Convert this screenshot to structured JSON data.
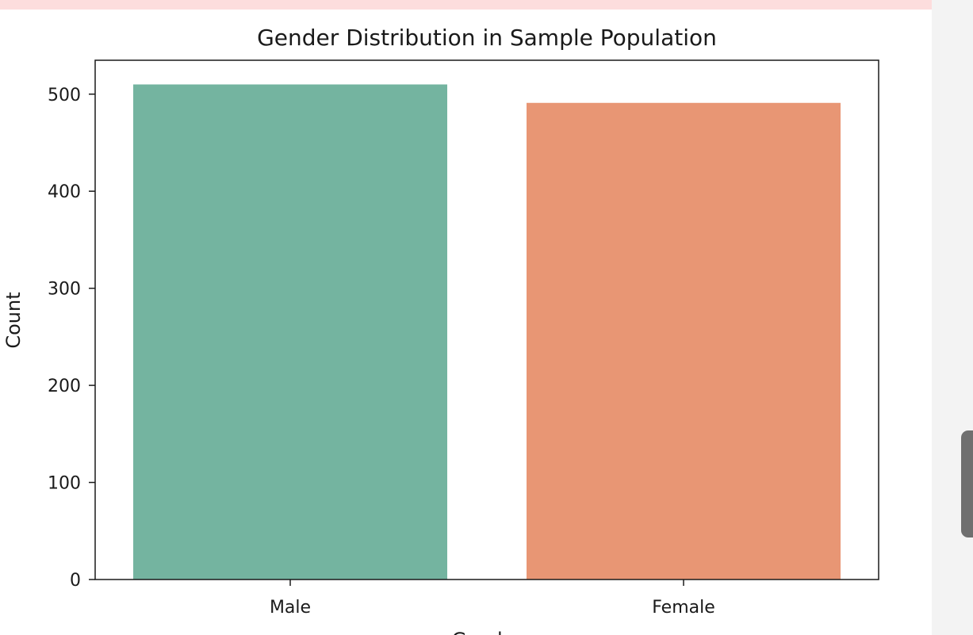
{
  "chart_data": {
    "type": "bar",
    "title": "Gender Distribution in Sample Population",
    "xlabel": "Gender",
    "ylabel": "Count",
    "categories": [
      "Male",
      "Female"
    ],
    "values": [
      510,
      491
    ],
    "colors": [
      "#74b4a0",
      "#e89674"
    ],
    "ylim": [
      0,
      535
    ],
    "yticks": [
      0,
      100,
      200,
      300,
      400,
      500
    ],
    "grid": false,
    "legend": "none"
  },
  "page": {
    "banner_color": "#fddddd",
    "scrollbar_thumb_color": "#6f6f6f"
  }
}
